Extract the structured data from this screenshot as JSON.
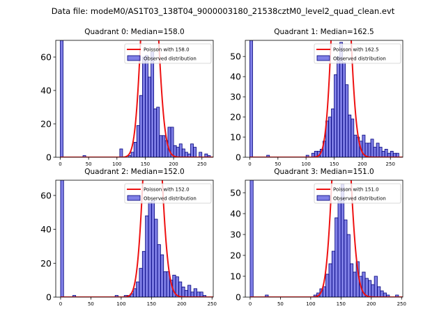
{
  "suptitle": "Data file: modeM0/AS1T03_138T04_9000003180_21538cztM0_level2_quad_clean.evt",
  "chart_data": [
    {
      "type": "bar",
      "title": "Quadrant 0: Median=158.0",
      "xlim": [
        -8,
        270
      ],
      "ylim": [
        0,
        70
      ],
      "xticks": [
        0,
        50,
        100,
        150,
        200,
        250
      ],
      "yticks": [
        0,
        20,
        40,
        60
      ],
      "bin_width": 5,
      "bins": [
        [
          0,
          70
        ],
        [
          40,
          1
        ],
        [
          105,
          5
        ],
        [
          120,
          1
        ],
        [
          125,
          3
        ],
        [
          130,
          9
        ],
        [
          135,
          19
        ],
        [
          140,
          37
        ],
        [
          145,
          60
        ],
        [
          150,
          61
        ],
        [
          155,
          48
        ],
        [
          160,
          63
        ],
        [
          165,
          29
        ],
        [
          170,
          30
        ],
        [
          175,
          13
        ],
        [
          180,
          13
        ],
        [
          185,
          10
        ],
        [
          190,
          18
        ],
        [
          195,
          18
        ],
        [
          200,
          7
        ],
        [
          205,
          6
        ],
        [
          210,
          8
        ],
        [
          215,
          5
        ],
        [
          220,
          3
        ],
        [
          225,
          2
        ],
        [
          230,
          8
        ],
        [
          235,
          6
        ],
        [
          245,
          3
        ],
        [
          255,
          2
        ],
        [
          260,
          1
        ]
      ],
      "clip_count": 70,
      "poisson_mean": 158.0,
      "poisson_total": 1000,
      "legend": [
        "Poisson with 158.0",
        "Observed distribution"
      ]
    },
    {
      "type": "bar",
      "title": "Quadrant 1: Median=162.5",
      "xlim": [
        -8,
        272
      ],
      "ylim": [
        0,
        58
      ],
      "xticks": [
        0,
        50,
        100,
        150,
        200,
        250
      ],
      "yticks": [
        0,
        10,
        20,
        30,
        40,
        50
      ],
      "bin_width": 5,
      "bins": [
        [
          0,
          58
        ],
        [
          30,
          1
        ],
        [
          100,
          1
        ],
        [
          110,
          2
        ],
        [
          115,
          3
        ],
        [
          120,
          3
        ],
        [
          125,
          4
        ],
        [
          130,
          8
        ],
        [
          135,
          18
        ],
        [
          140,
          20
        ],
        [
          145,
          24
        ],
        [
          150,
          41
        ],
        [
          155,
          50
        ],
        [
          160,
          57
        ],
        [
          165,
          47
        ],
        [
          170,
          36
        ],
        [
          175,
          21
        ],
        [
          180,
          19
        ],
        [
          185,
          11
        ],
        [
          190,
          10
        ],
        [
          195,
          8
        ],
        [
          200,
          11
        ],
        [
          205,
          7
        ],
        [
          210,
          7
        ],
        [
          215,
          9
        ],
        [
          220,
          5
        ],
        [
          225,
          7
        ],
        [
          230,
          5
        ],
        [
          235,
          3
        ],
        [
          240,
          4
        ],
        [
          245,
          2
        ],
        [
          250,
          3
        ],
        [
          255,
          2
        ],
        [
          260,
          2
        ]
      ],
      "clip_count": 58,
      "poisson_mean": 162.5,
      "poisson_total": 1000,
      "legend": [
        "Poisson with 162.5",
        "Observed distribution"
      ]
    },
    {
      "type": "bar",
      "title": "Quadrant 2: Median=152.0",
      "xlim": [
        -8,
        252
      ],
      "ylim": [
        0,
        69
      ],
      "xticks": [
        0,
        50,
        100,
        150,
        200,
        250
      ],
      "yticks": [
        0,
        20,
        40,
        60
      ],
      "bin_width": 5,
      "bins": [
        [
          0,
          69
        ],
        [
          20,
          1
        ],
        [
          90,
          1
        ],
        [
          105,
          1
        ],
        [
          110,
          1
        ],
        [
          115,
          2
        ],
        [
          120,
          5
        ],
        [
          125,
          9
        ],
        [
          130,
          17
        ],
        [
          135,
          27
        ],
        [
          140,
          48
        ],
        [
          145,
          56
        ],
        [
          150,
          57
        ],
        [
          155,
          46
        ],
        [
          160,
          31
        ],
        [
          165,
          25
        ],
        [
          170,
          15
        ],
        [
          175,
          15
        ],
        [
          180,
          10
        ],
        [
          185,
          13
        ],
        [
          190,
          12
        ],
        [
          195,
          9
        ],
        [
          200,
          6
        ],
        [
          205,
          4
        ],
        [
          210,
          7
        ],
        [
          215,
          3
        ],
        [
          220,
          5
        ],
        [
          225,
          3
        ],
        [
          230,
          3
        ],
        [
          235,
          1
        ]
      ],
      "clip_count": 69,
      "poisson_mean": 152.0,
      "poisson_total": 1000,
      "legend": [
        "Poisson with 152.0",
        "Observed distribution"
      ]
    },
    {
      "type": "bar",
      "title": "Quadrant 3: Median=151.0",
      "xlim": [
        -8,
        252
      ],
      "ylim": [
        0,
        56
      ],
      "xticks": [
        0,
        50,
        100,
        150,
        200,
        250
      ],
      "yticks": [
        0,
        10,
        20,
        30,
        40,
        50
      ],
      "bin_width": 5,
      "bins": [
        [
          0,
          56
        ],
        [
          25,
          1
        ],
        [
          105,
          1
        ],
        [
          110,
          2
        ],
        [
          115,
          4
        ],
        [
          120,
          5
        ],
        [
          125,
          11
        ],
        [
          130,
          16
        ],
        [
          135,
          22
        ],
        [
          140,
          38
        ],
        [
          145,
          46
        ],
        [
          150,
          54
        ],
        [
          155,
          37
        ],
        [
          160,
          30
        ],
        [
          165,
          16
        ],
        [
          170,
          12
        ],
        [
          175,
          17
        ],
        [
          180,
          10
        ],
        [
          185,
          12
        ],
        [
          190,
          9
        ],
        [
          195,
          8
        ],
        [
          200,
          6
        ],
        [
          205,
          10
        ],
        [
          210,
          5
        ],
        [
          215,
          3
        ],
        [
          220,
          2
        ],
        [
          225,
          1
        ],
        [
          240,
          1
        ]
      ],
      "clip_count": 56,
      "poisson_mean": 151.0,
      "poisson_total": 800,
      "legend": [
        "Poisson with 151.0",
        "Observed distribution"
      ]
    }
  ]
}
